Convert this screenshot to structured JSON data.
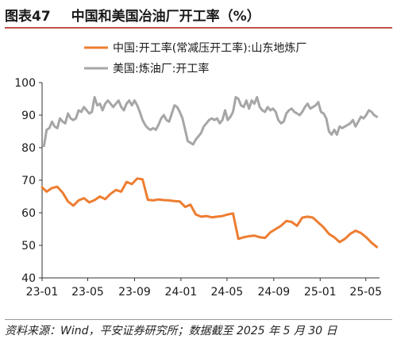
{
  "header": {
    "figure_number": "图表47",
    "title": "中国和美国冶油厂开工率（%）"
  },
  "footer": {
    "source": "资料来源：Wind，平安证券研究所；数据截至 2025 年 5 月 30 日"
  },
  "chart_data": {
    "type": "line",
    "x_ticks": [
      "23-01",
      "23-05",
      "23-09",
      "24-01",
      "24-05",
      "24-09",
      "25-01",
      "25-05"
    ],
    "x_range": [
      "2023-01-01",
      "2025-06-06"
    ],
    "ylim": [
      40,
      100
    ],
    "y_ticks": [
      40,
      50,
      60,
      70,
      80,
      90,
      100
    ],
    "grid": false,
    "legend_position": "top-left",
    "series": [
      {
        "name": "中国:开工率(常减压开工率):山东地炼厂",
        "color": "#ed7d31",
        "x": [
          "2023-01-01",
          "2023-01-13",
          "2023-01-27",
          "2023-02-10",
          "2023-02-24",
          "2023-03-10",
          "2023-03-24",
          "2023-04-07",
          "2023-04-21",
          "2023-05-05",
          "2023-05-19",
          "2023-06-02",
          "2023-06-16",
          "2023-06-30",
          "2023-07-14",
          "2023-07-28",
          "2023-08-11",
          "2023-08-25",
          "2023-09-08",
          "2023-09-22",
          "2023-10-06",
          "2023-10-20",
          "2023-11-03",
          "2023-11-17",
          "2023-12-01",
          "2023-12-15",
          "2023-12-29",
          "2024-01-12",
          "2024-01-26",
          "2024-02-09",
          "2024-02-23",
          "2024-03-08",
          "2024-03-22",
          "2024-04-05",
          "2024-04-19",
          "2024-05-03",
          "2024-05-17",
          "2024-05-31",
          "2024-06-14",
          "2024-06-28",
          "2024-07-12",
          "2024-07-26",
          "2024-08-09",
          "2024-08-23",
          "2024-09-06",
          "2024-09-20",
          "2024-10-04",
          "2024-10-18",
          "2024-11-01",
          "2024-11-15",
          "2024-11-29",
          "2024-12-13",
          "2024-12-27",
          "2025-01-10",
          "2025-01-24",
          "2025-02-07",
          "2025-02-21",
          "2025-03-07",
          "2025-03-21",
          "2025-04-04",
          "2025-04-18",
          "2025-05-02",
          "2025-05-16",
          "2025-05-30"
        ],
        "values": [
          67.8,
          66.5,
          67.6,
          68.0,
          66.2,
          63.5,
          62.2,
          63.8,
          64.5,
          63.2,
          63.9,
          65.0,
          64.2,
          65.8,
          67.0,
          66.5,
          69.5,
          68.8,
          70.5,
          70.3,
          64.0,
          63.8,
          64.1,
          63.9,
          63.8,
          63.6,
          63.5,
          61.8,
          62.5,
          59.5,
          58.8,
          59.0,
          58.6,
          58.8,
          59.0,
          59.5,
          59.8,
          52.0,
          52.5,
          52.8,
          53.0,
          52.5,
          52.3,
          54.0,
          55.0,
          56.0,
          57.5,
          57.2,
          56.0,
          58.5,
          58.8,
          58.5,
          57.0,
          55.5,
          53.5,
          52.5,
          51.0,
          52.0,
          53.5,
          54.5,
          53.8,
          52.5,
          50.8,
          49.5
        ]
      },
      {
        "name": "美国:炼油厂:开工率",
        "color": "#a6a6a6",
        "x": [
          "2023-01-06",
          "2023-01-13",
          "2023-01-20",
          "2023-01-27",
          "2023-02-03",
          "2023-02-10",
          "2023-02-17",
          "2023-02-24",
          "2023-03-03",
          "2023-03-10",
          "2023-03-17",
          "2023-03-24",
          "2023-03-31",
          "2023-04-07",
          "2023-04-14",
          "2023-04-21",
          "2023-04-28",
          "2023-05-05",
          "2023-05-12",
          "2023-05-19",
          "2023-05-26",
          "2023-06-02",
          "2023-06-09",
          "2023-06-16",
          "2023-06-23",
          "2023-06-30",
          "2023-07-07",
          "2023-07-14",
          "2023-07-21",
          "2023-07-28",
          "2023-08-04",
          "2023-08-11",
          "2023-08-18",
          "2023-08-25",
          "2023-09-01",
          "2023-09-08",
          "2023-09-15",
          "2023-09-22",
          "2023-09-29",
          "2023-10-06",
          "2023-10-13",
          "2023-10-20",
          "2023-10-27",
          "2023-11-03",
          "2023-11-10",
          "2023-11-17",
          "2023-11-24",
          "2023-12-01",
          "2023-12-08",
          "2023-12-15",
          "2023-12-22",
          "2023-12-29",
          "2024-01-05",
          "2024-01-12",
          "2024-01-19",
          "2024-01-26",
          "2024-02-02",
          "2024-02-09",
          "2024-02-16",
          "2024-02-23",
          "2024-03-01",
          "2024-03-08",
          "2024-03-15",
          "2024-03-22",
          "2024-03-29",
          "2024-04-05",
          "2024-04-12",
          "2024-04-19",
          "2024-04-26",
          "2024-05-03",
          "2024-05-10",
          "2024-05-17",
          "2024-05-24",
          "2024-05-31",
          "2024-06-07",
          "2024-06-14",
          "2024-06-21",
          "2024-06-28",
          "2024-07-05",
          "2024-07-12",
          "2024-07-19",
          "2024-07-26",
          "2024-08-02",
          "2024-08-09",
          "2024-08-16",
          "2024-08-23",
          "2024-08-30",
          "2024-09-06",
          "2024-09-13",
          "2024-09-20",
          "2024-09-27",
          "2024-10-04",
          "2024-10-11",
          "2024-10-18",
          "2024-10-25",
          "2024-11-01",
          "2024-11-08",
          "2024-11-15",
          "2024-11-22",
          "2024-11-29",
          "2024-12-06",
          "2024-12-13",
          "2024-12-20",
          "2024-12-27",
          "2025-01-03",
          "2025-01-10",
          "2025-01-17",
          "2025-01-24",
          "2025-01-31",
          "2025-02-07",
          "2025-02-14",
          "2025-02-21",
          "2025-02-28",
          "2025-03-07",
          "2025-03-14",
          "2025-03-21",
          "2025-03-28",
          "2025-04-04",
          "2025-04-11",
          "2025-04-18",
          "2025-04-25",
          "2025-05-02",
          "2025-05-09",
          "2025-05-16",
          "2025-05-23",
          "2025-05-30"
        ],
        "values": [
          80.5,
          85.5,
          86.0,
          88.0,
          86.5,
          86.0,
          89.0,
          88.0,
          87.5,
          90.5,
          89.0,
          88.5,
          89.0,
          91.5,
          91.0,
          92.5,
          91.5,
          90.5,
          91.0,
          95.5,
          93.0,
          93.5,
          91.5,
          93.5,
          94.5,
          93.5,
          92.5,
          93.5,
          94.5,
          92.5,
          91.5,
          93.5,
          94.5,
          93.0,
          94.5,
          93.0,
          91.0,
          88.5,
          87.0,
          86.0,
          85.5,
          86.0,
          85.5,
          87.0,
          89.0,
          90.0,
          88.5,
          88.0,
          90.5,
          93.0,
          92.5,
          91.0,
          89.0,
          85.5,
          82.0,
          81.5,
          81.0,
          82.5,
          83.5,
          84.5,
          86.5,
          87.5,
          88.5,
          89.0,
          88.5,
          89.0,
          87.5,
          88.5,
          91.5,
          88.5,
          89.5,
          91.0,
          95.5,
          95.0,
          93.0,
          92.5,
          94.5,
          92.0,
          94.5,
          93.5,
          95.5,
          92.5,
          91.5,
          91.0,
          92.5,
          91.5,
          92.0,
          91.0,
          88.5,
          87.5,
          88.0,
          90.5,
          91.5,
          92.0,
          91.0,
          90.5,
          90.0,
          91.0,
          92.5,
          93.5,
          92.0,
          92.5,
          93.0,
          94.0,
          91.0,
          90.5,
          89.0,
          85.0,
          84.0,
          85.5,
          84.0,
          86.5,
          86.0,
          86.5,
          87.0,
          87.5,
          88.5,
          86.5,
          88.0,
          89.5,
          89.0,
          90.0,
          91.5,
          91.0,
          90.0,
          89.5
        ]
      }
    ]
  }
}
